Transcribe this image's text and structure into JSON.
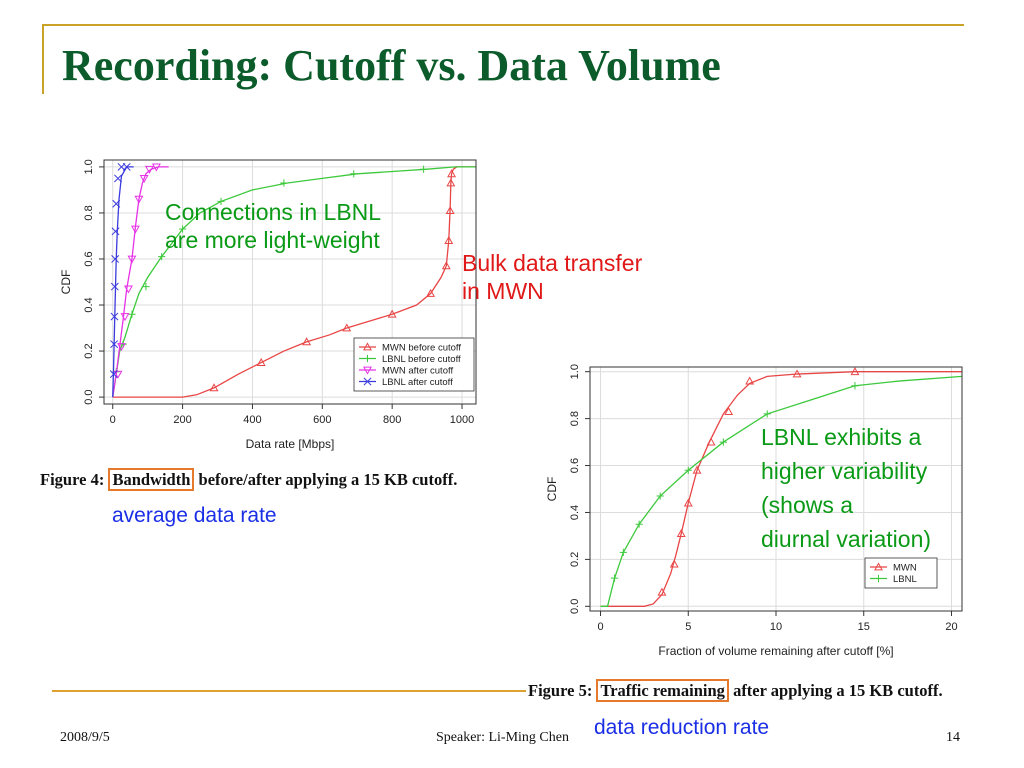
{
  "slide": {
    "title": "Recording: Cutoff vs. Data Volume",
    "footer_date": "2008/9/5",
    "footer_speaker": "Speaker: Li-Ming Chen",
    "page_number": "14"
  },
  "annotations": {
    "lbnl_light_weight": [
      "Connections in LBNL",
      "are more light-weight"
    ],
    "bulk_transfer": [
      "Bulk data transfer",
      "in MWN"
    ],
    "lbnl_variability": [
      "LBNL exhibits a",
      "higher variability",
      "(shows a",
      "diurnal variation)"
    ],
    "average_rate": "average data rate",
    "reduction_rate": "data reduction rate"
  },
  "figure4": {
    "caption_prefix": "Figure 4:",
    "caption_boxed": "Bandwidth",
    "caption_suffix": "before/after applying a 15 KB cutoff."
  },
  "figure5": {
    "caption_prefix": "Figure 5:",
    "caption_boxed": "Traffic remaining",
    "caption_suffix": "after applying a 15 KB cutoff."
  },
  "colors": {
    "red": "#e84545",
    "green": "#3cc93c",
    "magenta": "#e632e6",
    "blue": "#3a3adf",
    "title": "#0b5b2b",
    "accent": "#c9a227"
  },
  "chart_data": [
    {
      "type": "line",
      "title": "",
      "xlabel": "Data rate [Mbps]",
      "ylabel": "CDF",
      "xlim": [
        -25,
        1040
      ],
      "ylim": [
        -0.03,
        1.03
      ],
      "xticks": [
        0,
        200,
        400,
        600,
        800,
        1000
      ],
      "yticks": [
        0.0,
        0.2,
        0.4,
        0.6,
        0.8,
        1.0
      ],
      "ytick_labels": [
        "0.0",
        "0.2",
        "0.4",
        "0.6",
        "0.8",
        "1.0"
      ],
      "grid": true,
      "legend_position": "bottom-right",
      "series": [
        {
          "name": "MWN before cutoff",
          "color": "#e84545",
          "marker": "triangle-up",
          "x": [
            0,
            200,
            240,
            290,
            360,
            425,
            490,
            555,
            620,
            670,
            735,
            800,
            870,
            910,
            940,
            955,
            962,
            966,
            968,
            970,
            975,
            985,
            1040
          ],
          "y": [
            0,
            0,
            0.01,
            0.04,
            0.1,
            0.15,
            0.2,
            0.24,
            0.27,
            0.3,
            0.33,
            0.36,
            0.4,
            0.45,
            0.52,
            0.57,
            0.68,
            0.82,
            0.93,
            0.97,
            0.99,
            1.0,
            1.0
          ],
          "marker_x": [
            290,
            425,
            555,
            670,
            800,
            910,
            955,
            962,
            966,
            968,
            970
          ],
          "marker_y": [
            0.04,
            0.15,
            0.24,
            0.3,
            0.36,
            0.45,
            0.57,
            0.68,
            0.81,
            0.93,
            0.97
          ]
        },
        {
          "name": "LBNL before cutoff",
          "color": "#3cc93c",
          "marker": "plus",
          "x": [
            0,
            10,
            20,
            35,
            55,
            75,
            100,
            140,
            200,
            250,
            310,
            400,
            500,
            600,
            700,
            800,
            900,
            980,
            1040
          ],
          "y": [
            0,
            0.1,
            0.2,
            0.26,
            0.36,
            0.45,
            0.52,
            0.61,
            0.73,
            0.8,
            0.85,
            0.9,
            0.93,
            0.95,
            0.97,
            0.98,
            0.99,
            1.0,
            1.0
          ],
          "marker_x": [
            10,
            30,
            55,
            95,
            140,
            200,
            310,
            490,
            690,
            890
          ],
          "marker_y": [
            0.11,
            0.23,
            0.36,
            0.48,
            0.61,
            0.73,
            0.85,
            0.93,
            0.97,
            0.99
          ]
        },
        {
          "name": "MWN after cutoff",
          "color": "#e632e6",
          "marker": "triangle-down",
          "x": [
            0,
            10,
            20,
            30,
            40,
            55,
            65,
            75,
            85,
            95,
            110,
            130,
            160
          ],
          "y": [
            0,
            0.1,
            0.22,
            0.34,
            0.47,
            0.6,
            0.74,
            0.86,
            0.93,
            0.97,
            0.99,
            1.0,
            1.0
          ],
          "marker_x": [
            15,
            25,
            35,
            45,
            55,
            65,
            75,
            90,
            105,
            125
          ],
          "marker_y": [
            0.1,
            0.22,
            0.35,
            0.47,
            0.6,
            0.73,
            0.86,
            0.95,
            0.99,
            1.0
          ]
        },
        {
          "name": "LBNL after cutoff",
          "color": "#3a3adf",
          "marker": "x",
          "x": [
            0,
            2,
            4,
            6,
            8,
            10,
            13,
            18,
            25,
            40,
            60
          ],
          "y": [
            0,
            0.1,
            0.23,
            0.36,
            0.48,
            0.6,
            0.72,
            0.86,
            0.96,
            1.0,
            1.0
          ],
          "marker_x": [
            3,
            4,
            5,
            6,
            7,
            8,
            10,
            15,
            25,
            40
          ],
          "marker_y": [
            0.1,
            0.23,
            0.35,
            0.48,
            0.6,
            0.72,
            0.84,
            0.95,
            1.0,
            1.0
          ]
        }
      ]
    },
    {
      "type": "line",
      "title": "",
      "xlabel": "Fraction of volume remaining after cutoff [%]",
      "ylabel": "CDF",
      "xlim": [
        -0.6,
        20.6
      ],
      "ylim": [
        -0.02,
        1.02
      ],
      "xticks": [
        0,
        5,
        10,
        15,
        20
      ],
      "yticks": [
        0.0,
        0.2,
        0.4,
        0.6,
        0.8,
        1.0
      ],
      "ytick_labels": [
        "0.0",
        "0.2",
        "0.4",
        "0.6",
        "0.8",
        "1.0"
      ],
      "grid": true,
      "legend_position": "bottom-right",
      "series": [
        {
          "name": "MWN",
          "color": "#e84545",
          "marker": "triangle-up",
          "x": [
            0,
            2.5,
            3,
            3.5,
            4.0,
            4.3,
            4.6,
            5.0,
            5.5,
            6.2,
            7.0,
            7.8,
            8.5,
            9.5,
            11.2,
            14.5,
            17,
            20.6
          ],
          "y": [
            0,
            0,
            0.01,
            0.05,
            0.14,
            0.22,
            0.31,
            0.44,
            0.58,
            0.7,
            0.82,
            0.9,
            0.95,
            0.98,
            0.99,
            1.0,
            1.0,
            1.0
          ],
          "marker_x": [
            3.5,
            4.2,
            4.6,
            5.0,
            5.5,
            6.3,
            7.3,
            8.5,
            11.2,
            14.5
          ],
          "marker_y": [
            0.06,
            0.18,
            0.31,
            0.44,
            0.58,
            0.7,
            0.83,
            0.96,
            0.99,
            1.0
          ]
        },
        {
          "name": "LBNL",
          "color": "#3cc93c",
          "marker": "plus",
          "x": [
            0,
            0.4,
            0.8,
            1.3,
            2.2,
            3.4,
            5.0,
            7.0,
            9.5,
            12,
            14.5,
            17,
            20.6
          ],
          "y": [
            0,
            0.0,
            0.12,
            0.23,
            0.35,
            0.47,
            0.58,
            0.7,
            0.82,
            0.88,
            0.94,
            0.96,
            0.98
          ],
          "marker_x": [
            0.8,
            1.3,
            2.2,
            3.4,
            5.0,
            7.0,
            9.5,
            14.5
          ],
          "marker_y": [
            0.12,
            0.23,
            0.35,
            0.47,
            0.58,
            0.7,
            0.82,
            0.94
          ]
        }
      ]
    }
  ]
}
